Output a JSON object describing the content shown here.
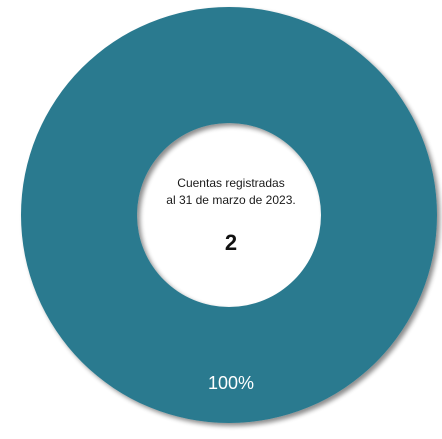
{
  "colors": {
    "ring": "#2A7A8F",
    "shadow": "#6f6f6f",
    "background": "#FFFFFF"
  },
  "chart_data": {
    "type": "pie",
    "variant": "donut",
    "categories": [
      ""
    ],
    "values": [
      100
    ],
    "slice_labels": [
      "100%"
    ],
    "center_text": {
      "line1": "Cuentas registradas",
      "line2": "al 31 de marzo de 2023.",
      "value": "2"
    },
    "title": "",
    "legend": "none"
  }
}
